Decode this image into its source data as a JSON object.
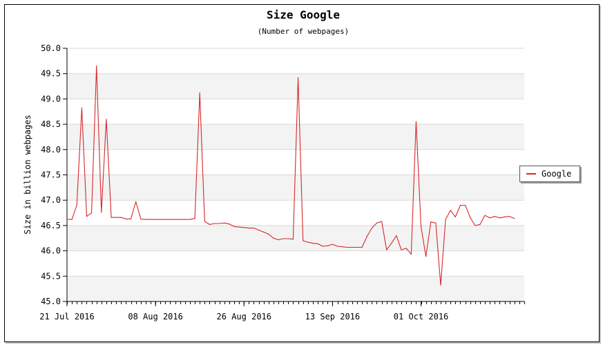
{
  "chart_data": {
    "type": "line",
    "title": "Size Google",
    "subtitle": "(Number of webpages)",
    "xlabel": "",
    "ylabel": "Size in billion webpages",
    "ylim": [
      45.0,
      50.0
    ],
    "yticks": [
      "45.0",
      "45.5",
      "46.0",
      "46.5",
      "47.0",
      "47.5",
      "48.0",
      "48.5",
      "49.0",
      "49.5",
      "50.0"
    ],
    "xticks": [
      "21 Jul 2016",
      "08 Aug 2016",
      "26 Aug 2016",
      "13 Sep 2016",
      "01 Oct 2016"
    ],
    "x_start": "2016-07-21",
    "x_end": "2016-10-22",
    "grid": true,
    "legend_position": "right",
    "series": [
      {
        "name": "Google",
        "color": "#d62728",
        "points": [
          [
            "2016-07-21",
            46.62
          ],
          [
            "2016-07-22",
            46.62
          ],
          [
            "2016-07-23",
            46.9
          ],
          [
            "2016-07-24",
            48.82
          ],
          [
            "2016-07-25",
            46.68
          ],
          [
            "2016-07-26",
            46.75
          ],
          [
            "2016-07-27",
            49.65
          ],
          [
            "2016-07-28",
            46.76
          ],
          [
            "2016-07-29",
            48.6
          ],
          [
            "2016-07-30",
            46.66
          ],
          [
            "2016-07-31",
            46.66
          ],
          [
            "2016-08-01",
            46.66
          ],
          [
            "2016-08-02",
            46.63
          ],
          [
            "2016-08-03",
            46.63
          ],
          [
            "2016-08-04",
            46.97
          ],
          [
            "2016-08-05",
            46.63
          ],
          [
            "2016-08-06",
            46.62
          ],
          [
            "2016-08-07",
            46.62
          ],
          [
            "2016-08-08",
            46.62
          ],
          [
            "2016-08-09",
            46.62
          ],
          [
            "2016-08-10",
            46.62
          ],
          [
            "2016-08-11",
            46.62
          ],
          [
            "2016-08-12",
            46.62
          ],
          [
            "2016-08-13",
            46.62
          ],
          [
            "2016-08-14",
            46.62
          ],
          [
            "2016-08-15",
            46.62
          ],
          [
            "2016-08-16",
            46.64
          ],
          [
            "2016-08-17",
            49.12
          ],
          [
            "2016-08-18",
            46.58
          ],
          [
            "2016-08-19",
            46.52
          ],
          [
            "2016-08-20",
            46.54
          ],
          [
            "2016-08-21",
            46.54
          ],
          [
            "2016-08-22",
            46.55
          ],
          [
            "2016-08-23",
            46.53
          ],
          [
            "2016-08-24",
            46.48
          ],
          [
            "2016-08-25",
            46.47
          ],
          [
            "2016-08-26",
            46.46
          ],
          [
            "2016-08-27",
            46.45
          ],
          [
            "2016-08-28",
            46.45
          ],
          [
            "2016-08-29",
            46.41
          ],
          [
            "2016-08-30",
            46.37
          ],
          [
            "2016-08-31",
            46.33
          ],
          [
            "2016-09-01",
            46.25
          ],
          [
            "2016-09-02",
            46.22
          ],
          [
            "2016-09-03",
            46.24
          ],
          [
            "2016-09-04",
            46.24
          ],
          [
            "2016-09-05",
            46.23
          ],
          [
            "2016-09-06",
            49.42
          ],
          [
            "2016-09-07",
            46.2
          ],
          [
            "2016-09-08",
            46.17
          ],
          [
            "2016-09-09",
            46.15
          ],
          [
            "2016-09-10",
            46.14
          ],
          [
            "2016-09-11",
            46.09
          ],
          [
            "2016-09-12",
            46.1
          ],
          [
            "2016-09-13",
            46.13
          ],
          [
            "2016-09-14",
            46.09
          ],
          [
            "2016-09-15",
            46.08
          ],
          [
            "2016-09-16",
            46.07
          ],
          [
            "2016-09-17",
            46.07
          ],
          [
            "2016-09-18",
            46.07
          ],
          [
            "2016-09-19",
            46.07
          ],
          [
            "2016-09-20",
            46.28
          ],
          [
            "2016-09-21",
            46.45
          ],
          [
            "2016-09-22",
            46.55
          ],
          [
            "2016-09-23",
            46.58
          ],
          [
            "2016-09-24",
            46.02
          ],
          [
            "2016-09-25",
            46.15
          ],
          [
            "2016-09-26",
            46.3
          ],
          [
            "2016-09-27",
            46.02
          ],
          [
            "2016-09-28",
            46.05
          ],
          [
            "2016-09-29",
            45.93
          ],
          [
            "2016-09-30",
            48.55
          ],
          [
            "2016-10-01",
            46.48
          ],
          [
            "2016-10-02",
            45.89
          ],
          [
            "2016-10-03",
            46.57
          ],
          [
            "2016-10-04",
            46.55
          ],
          [
            "2016-10-05",
            45.32
          ],
          [
            "2016-10-06",
            46.62
          ],
          [
            "2016-10-07",
            46.8
          ],
          [
            "2016-10-08",
            46.67
          ],
          [
            "2016-10-09",
            46.9
          ],
          [
            "2016-10-10",
            46.9
          ],
          [
            "2016-10-11",
            46.66
          ],
          [
            "2016-10-12",
            46.5
          ],
          [
            "2016-10-13",
            46.52
          ],
          [
            "2016-10-14",
            46.7
          ],
          [
            "2016-10-15",
            46.65
          ],
          [
            "2016-10-16",
            46.68
          ],
          [
            "2016-10-17",
            46.65
          ],
          [
            "2016-10-18",
            46.67
          ],
          [
            "2016-10-19",
            46.68
          ],
          [
            "2016-10-20",
            46.64
          ]
        ]
      }
    ]
  }
}
